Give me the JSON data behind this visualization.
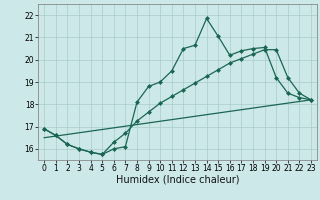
{
  "xlabel": "Humidex (Indice chaleur)",
  "background_color": "#cde8e8",
  "grid_color": "#aacccc",
  "line_color": "#1a6655",
  "xlim": [
    -0.5,
    23.5
  ],
  "ylim": [
    15.5,
    22.5
  ],
  "yticks": [
    16,
    17,
    18,
    19,
    20,
    21,
    22
  ],
  "xticks": [
    0,
    1,
    2,
    3,
    4,
    5,
    6,
    7,
    8,
    9,
    10,
    11,
    12,
    13,
    14,
    15,
    16,
    17,
    18,
    19,
    20,
    21,
    22,
    23
  ],
  "line1_x": [
    0,
    1,
    2,
    3,
    4,
    5,
    6,
    7,
    8,
    9,
    10,
    11,
    12,
    13,
    14,
    15,
    16,
    17,
    18,
    19,
    20,
    21,
    22,
    23
  ],
  "line1_y": [
    16.9,
    16.6,
    16.2,
    16.0,
    15.85,
    15.75,
    16.0,
    16.1,
    18.1,
    18.8,
    19.0,
    19.5,
    20.5,
    20.65,
    21.85,
    21.05,
    20.2,
    20.4,
    20.5,
    20.55,
    19.2,
    18.5,
    18.3,
    18.2
  ],
  "line2_x": [
    0,
    1,
    2,
    3,
    4,
    5,
    6,
    7,
    8,
    9,
    10,
    11,
    12,
    13,
    14,
    15,
    16,
    17,
    18,
    19,
    20,
    21,
    22,
    23
  ],
  "line2_y": [
    16.9,
    16.6,
    16.2,
    16.0,
    15.85,
    15.75,
    16.3,
    16.7,
    17.25,
    17.65,
    18.05,
    18.35,
    18.65,
    18.95,
    19.25,
    19.55,
    19.85,
    20.05,
    20.25,
    20.45,
    20.45,
    19.2,
    18.5,
    18.2
  ],
  "line3_x": [
    0,
    23
  ],
  "line3_y": [
    16.5,
    18.2
  ],
  "marker_size": 2.5,
  "linewidth": 0.9,
  "tick_fontsize": 5.5,
  "xlabel_fontsize": 7
}
